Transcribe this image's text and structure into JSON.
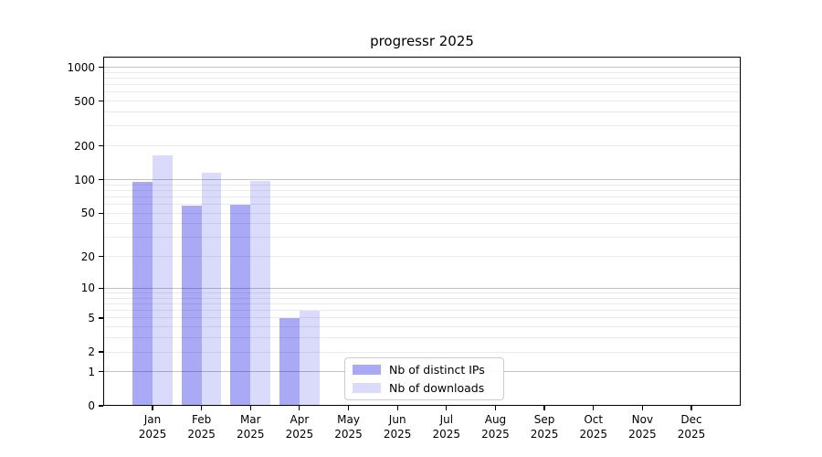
{
  "figure": {
    "title": "progressr 2025",
    "background_color": "#ffffff"
  },
  "legend": {
    "items": [
      {
        "label": "Nb of distinct IPs",
        "color": "rgba(10,10,230,0.35)"
      },
      {
        "label": "Nb of downloads",
        "color": "rgba(10,10,230,0.15)"
      }
    ]
  },
  "axes": {
    "x_tick_months": [
      "Jan",
      "Feb",
      "Mar",
      "Apr",
      "May",
      "Jun",
      "Jul",
      "Aug",
      "Sep",
      "Oct",
      "Nov",
      "Dec"
    ],
    "x_tick_year": "2025",
    "y_tick_values": [
      0,
      1,
      2,
      5,
      10,
      20,
      50,
      100,
      200,
      500,
      1000
    ]
  },
  "chart_data": {
    "type": "bar",
    "title": "progressr 2025",
    "categories": [
      "Jan 2025",
      "Feb 2025",
      "Mar 2025",
      "Apr 2025",
      "May 2025",
      "Jun 2025",
      "Jul 2025",
      "Aug 2025",
      "Sep 2025",
      "Oct 2025",
      "Nov 2025",
      "Dec 2025"
    ],
    "series": [
      {
        "name": "Nb of distinct IPs",
        "color": "rgba(10,10,230,0.35)",
        "values": [
          95,
          58,
          60,
          5,
          null,
          null,
          null,
          null,
          null,
          null,
          null,
          null
        ]
      },
      {
        "name": "Nb of downloads",
        "color": "rgba(10,10,230,0.15)",
        "values": [
          164,
          116,
          98,
          6,
          null,
          null,
          null,
          null,
          null,
          null,
          null,
          null
        ]
      }
    ],
    "xlabel": "",
    "ylabel": "",
    "yscale": "log10(1+y)",
    "yticks": [
      0,
      1,
      2,
      5,
      10,
      20,
      50,
      100,
      200,
      500,
      1000
    ],
    "ylim": [
      0,
      1240
    ],
    "grid": "horizontal major+minor",
    "legend_position": "lower center"
  }
}
